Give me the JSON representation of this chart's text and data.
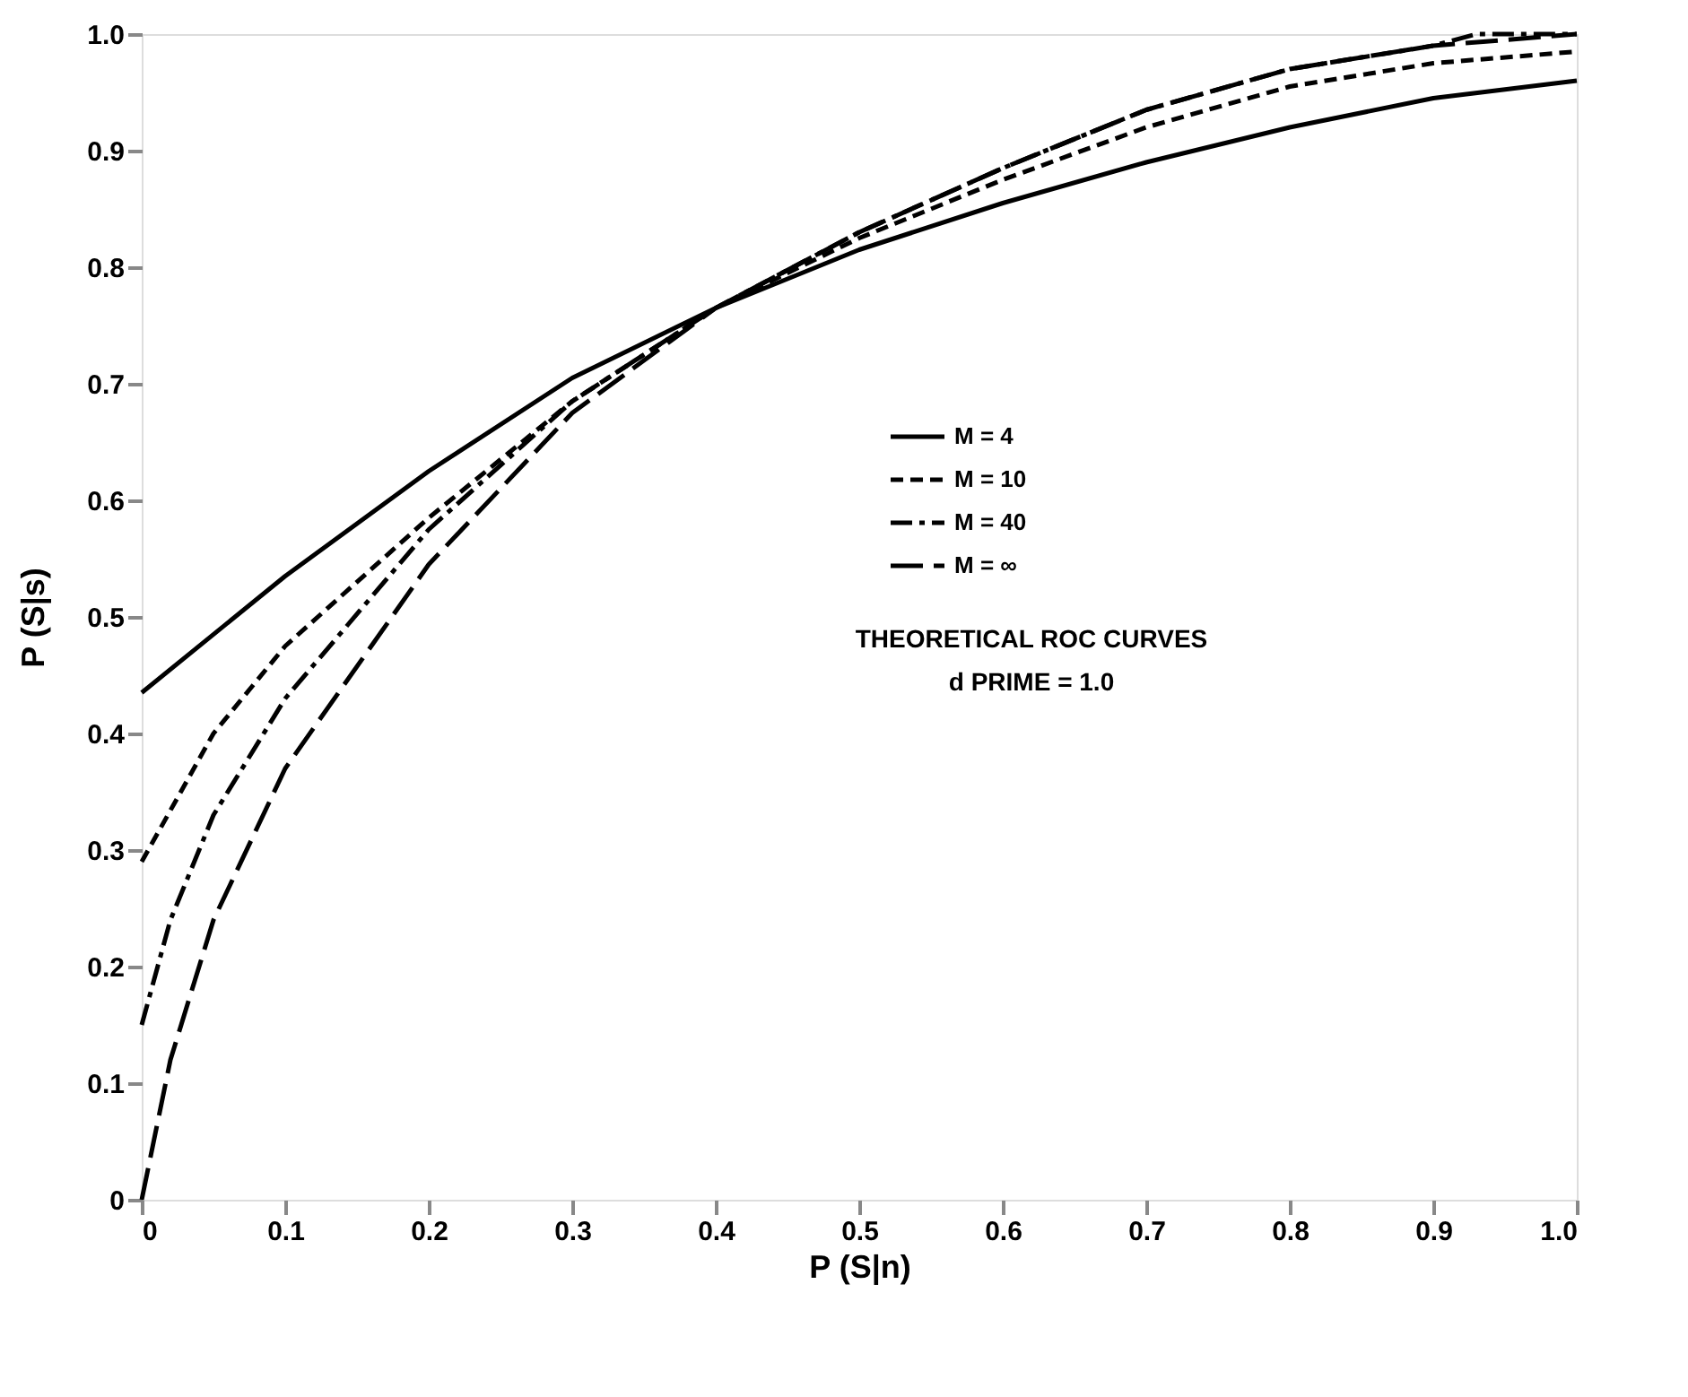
{
  "chart_data": {
    "type": "line",
    "xlabel": "P (S|n)",
    "ylabel": "P (S|s)",
    "xlim": [
      0,
      1
    ],
    "ylim": [
      0,
      1
    ],
    "xticks": [
      0,
      0.1,
      0.2,
      0.3,
      0.4,
      0.5,
      0.6,
      0.7,
      0.8,
      0.9,
      {
        "value": 1,
        "label": "1.0"
      }
    ],
    "yticks": [
      0,
      0.1,
      0.2,
      0.3,
      0.4,
      0.5,
      0.6,
      0.7,
      0.8,
      0.9,
      {
        "value": 1,
        "label": "1.0"
      }
    ],
    "grid": false,
    "legend": "right",
    "marker": "none",
    "annotations": [
      "THEORETICAL ROC CURVES",
      "d PRIME = 1.0"
    ],
    "series": [
      {
        "name": "M = 4",
        "color": "#000000",
        "line_style": "solid",
        "x": [
          0,
          0.1,
          0.2,
          0.3,
          0.4,
          0.5,
          0.6,
          0.7,
          0.8,
          0.9,
          1.0
        ],
        "values": [
          0.435,
          0.535,
          0.625,
          0.705,
          0.765,
          0.815,
          0.855,
          0.89,
          0.92,
          0.945,
          0.96
        ]
      },
      {
        "name": "M = 10",
        "color": "#000000",
        "line_style": "dashed",
        "x": [
          0,
          0.05,
          0.1,
          0.2,
          0.3,
          0.4,
          0.5,
          0.6,
          0.7,
          0.8,
          0.9,
          1.0
        ],
        "values": [
          0.29,
          0.4,
          0.475,
          0.585,
          0.685,
          0.765,
          0.825,
          0.875,
          0.92,
          0.955,
          0.975,
          0.985
        ]
      },
      {
        "name": "M = 40",
        "color": "#000000",
        "line_style": "dashdot",
        "x": [
          0,
          0.02,
          0.05,
          0.1,
          0.2,
          0.3,
          0.4,
          0.5,
          0.6,
          0.7,
          0.8,
          0.9,
          0.93,
          1.0
        ],
        "values": [
          0.15,
          0.24,
          0.33,
          0.43,
          0.575,
          0.685,
          0.765,
          0.83,
          0.885,
          0.935,
          0.97,
          0.99,
          1.0,
          1.0
        ]
      },
      {
        "name": "M = ∞",
        "color": "#000000",
        "line_style": "longdash",
        "x": [
          0,
          0.02,
          0.05,
          0.1,
          0.2,
          0.3,
          0.4,
          0.5,
          0.6,
          0.7,
          0.8,
          0.9,
          1.0
        ],
        "values": [
          0.0,
          0.12,
          0.24,
          0.37,
          0.545,
          0.675,
          0.765,
          0.83,
          0.885,
          0.935,
          0.97,
          0.99,
          1.0
        ]
      }
    ]
  }
}
